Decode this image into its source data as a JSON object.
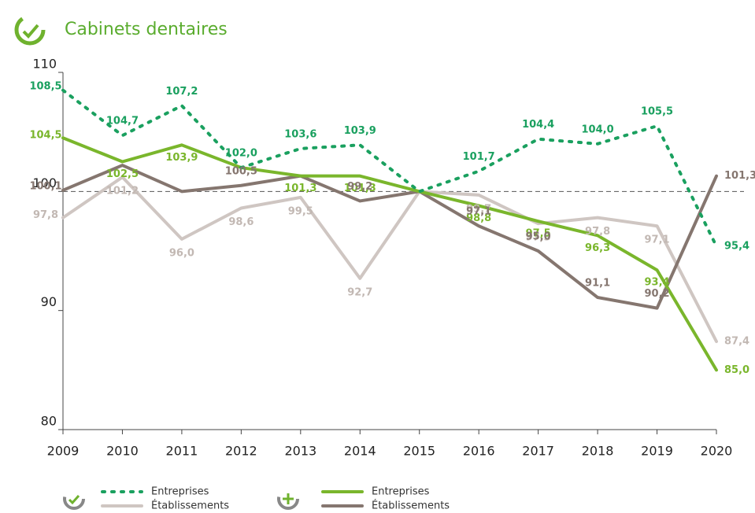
{
  "chart_data": {
    "type": "line",
    "title": "Cabinets dentaires",
    "x": [
      2009,
      2010,
      2011,
      2012,
      2013,
      2014,
      2015,
      2016,
      2017,
      2018,
      2019,
      2020
    ],
    "xlim": [
      2009,
      2020
    ],
    "ylim": [
      80,
      110
    ],
    "yticks": [
      80,
      90,
      100,
      110
    ],
    "reference_line": 100,
    "series": [
      {
        "name": "Entreprises",
        "color": "#1aa05f",
        "style": "dotted",
        "group": "dental",
        "values": [
          108.5,
          104.7,
          107.2,
          102.0,
          103.6,
          103.9,
          100,
          101.7,
          104.4,
          104.0,
          105.5,
          95.4
        ],
        "value_labels": [
          "108,5",
          "104,7",
          "107,2",
          "102,0",
          "103,6",
          "103,9",
          null,
          "101,7",
          "104,4",
          "104,0",
          "105,5",
          "95,4"
        ]
      },
      {
        "name": "Établissements",
        "color": "#cfc6c2",
        "style": "solid",
        "group": "dental",
        "values": [
          97.8,
          101.2,
          96.0,
          98.6,
          99.5,
          92.7,
          100,
          99.7,
          97.3,
          97.8,
          97.1,
          87.4
        ],
        "value_labels": [
          "97,8",
          "101,2",
          "96,0",
          "98,6",
          "99,5",
          "92,7",
          null,
          "99,7",
          "97,3",
          "97,8",
          "97,1",
          "87,4"
        ]
      },
      {
        "name": "Entreprises",
        "color": "#7ab62c",
        "style": "solid",
        "group": "plus",
        "values": [
          104.5,
          102.5,
          103.9,
          102.0,
          101.3,
          101.3,
          100,
          98.8,
          97.5,
          96.3,
          93.4,
          85.0
        ],
        "value_labels": [
          "104,5",
          "102,5",
          "103,9",
          null,
          "101,3",
          "101,3",
          null,
          "98,8",
          "97,5",
          "96,3",
          "93,4",
          "85,0"
        ]
      },
      {
        "name": "Établissements",
        "color": "#85766f",
        "style": "solid",
        "group": "plus",
        "values": [
          100.1,
          102.2,
          100.0,
          100.5,
          101.3,
          99.2,
          100,
          97.1,
          95.0,
          91.1,
          90.2,
          101.3
        ],
        "value_labels": [
          "100,1",
          null,
          null,
          "100,5",
          null,
          "99,2",
          null,
          "97,1",
          "95,0",
          "91,1",
          "90,2",
          "101,3"
        ]
      }
    ]
  }
}
